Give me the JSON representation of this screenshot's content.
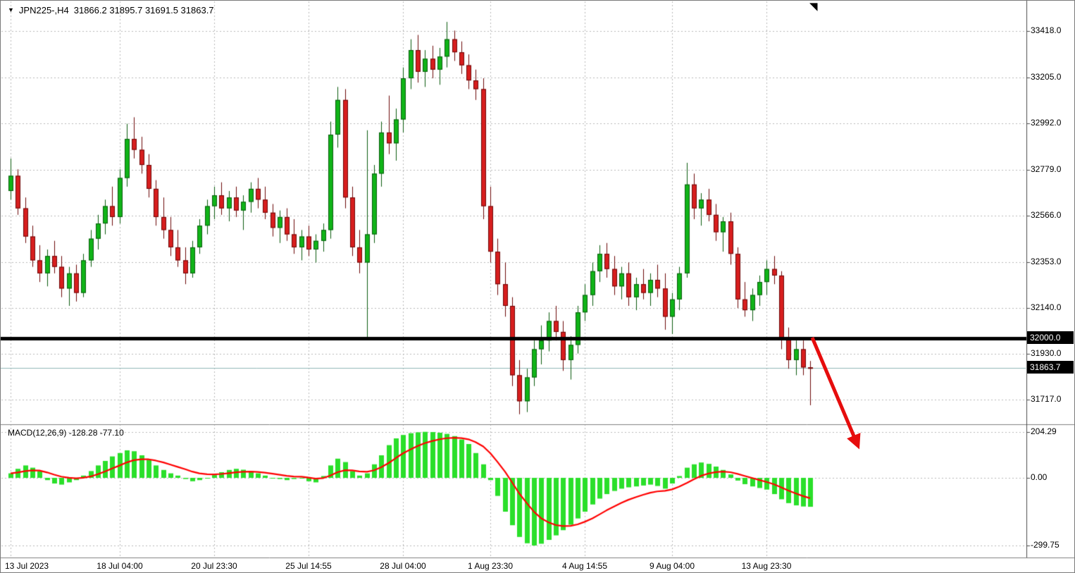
{
  "header": {
    "dropdown_icon": "▼",
    "title": "JPN225-,H4",
    "quote": "31866.2 31895.7 31691.5 31863.7"
  },
  "icons": {
    "end_marker": "◥"
  },
  "indicator_label": "MACD(12,26,9) -128.28 -77.10",
  "annotations": {
    "arrow": {
      "shape": "arrow",
      "color": "#e60d0d",
      "direction": "down-right"
    }
  },
  "chart_data": {
    "type": "candlestick",
    "symbol": "JPN225-",
    "timeframe": "H4",
    "last_quote": {
      "open": 31866.2,
      "high": 31895.7,
      "low": 31691.5,
      "close": 31863.7
    },
    "horizontal_line": {
      "label": "32000.0",
      "value": 32000.0
    },
    "last_price": {
      "label": "31863.7",
      "value": 31863.7
    },
    "price_axis_ticks": [
      {
        "label": "33418.0",
        "value": 33418.0
      },
      {
        "label": "33205.0",
        "value": 33205.0
      },
      {
        "label": "32992.0",
        "value": 32992.0
      },
      {
        "label": "32779.0",
        "value": 32779.0
      },
      {
        "label": "32566.0",
        "value": 32566.0
      },
      {
        "label": "32353.0",
        "value": 32353.0
      },
      {
        "label": "32140.0",
        "value": 32140.0
      },
      {
        "label": "31930.0",
        "value": 31930.0
      },
      {
        "label": "31717.0",
        "value": 31717.0
      }
    ],
    "time_ticks": [
      {
        "label": "13 Jul 2023",
        "index": 0
      },
      {
        "label": "18 Jul 04:00",
        "index": 15
      },
      {
        "label": "20 Jul 23:30",
        "index": 28
      },
      {
        "label": "25 Jul 14:55",
        "index": 41
      },
      {
        "label": "28 Jul 04:00",
        "index": 54
      },
      {
        "label": "1 Aug 23:30",
        "index": 66
      },
      {
        "label": "4 Aug 14:55",
        "index": 79
      },
      {
        "label": "9 Aug 04:00",
        "index": 91
      },
      {
        "label": "13 Aug 23:30",
        "index": 104
      }
    ],
    "ohlc": [
      [
        32680,
        32830,
        32640,
        32750
      ],
      [
        32750,
        32780,
        32570,
        32600
      ],
      [
        32600,
        32650,
        32440,
        32470
      ],
      [
        32470,
        32520,
        32330,
        32360
      ],
      [
        32360,
        32430,
        32260,
        32300
      ],
      [
        32300,
        32410,
        32240,
        32380
      ],
      [
        32380,
        32450,
        32300,
        32330
      ],
      [
        32330,
        32380,
        32190,
        32230
      ],
      [
        32230,
        32330,
        32150,
        32300
      ],
      [
        32300,
        32340,
        32170,
        32210
      ],
      [
        32210,
        32390,
        32190,
        32360
      ],
      [
        32360,
        32500,
        32330,
        32460
      ],
      [
        32460,
        32570,
        32410,
        32530
      ],
      [
        32530,
        32640,
        32480,
        32610
      ],
      [
        32610,
        32700,
        32520,
        32560
      ],
      [
        32560,
        32780,
        32530,
        32740
      ],
      [
        32740,
        32990,
        32700,
        32920
      ],
      [
        32920,
        33020,
        32830,
        32870
      ],
      [
        32870,
        32930,
        32760,
        32800
      ],
      [
        32800,
        32850,
        32650,
        32690
      ],
      [
        32690,
        32730,
        32520,
        32560
      ],
      [
        32560,
        32650,
        32460,
        32500
      ],
      [
        32500,
        32560,
        32380,
        32420
      ],
      [
        32420,
        32500,
        32330,
        32360
      ],
      [
        32360,
        32420,
        32250,
        32300
      ],
      [
        32300,
        32450,
        32280,
        32420
      ],
      [
        32420,
        32550,
        32390,
        32520
      ],
      [
        32520,
        32640,
        32480,
        32610
      ],
      [
        32610,
        32700,
        32550,
        32660
      ],
      [
        32660,
        32720,
        32570,
        32600
      ],
      [
        32600,
        32680,
        32540,
        32650
      ],
      [
        32650,
        32700,
        32560,
        32590
      ],
      [
        32590,
        32660,
        32500,
        32630
      ],
      [
        32630,
        32720,
        32580,
        32690
      ],
      [
        32690,
        32740,
        32600,
        32640
      ],
      [
        32640,
        32700,
        32550,
        32580
      ],
      [
        32580,
        32620,
        32470,
        32510
      ],
      [
        32510,
        32590,
        32440,
        32560
      ],
      [
        32560,
        32600,
        32450,
        32480
      ],
      [
        32480,
        32550,
        32390,
        32420
      ],
      [
        32420,
        32500,
        32360,
        32470
      ],
      [
        32470,
        32520,
        32380,
        32410
      ],
      [
        32410,
        32480,
        32350,
        32450
      ],
      [
        32450,
        32530,
        32400,
        32500
      ],
      [
        32500,
        33000,
        32460,
        32940
      ],
      [
        32940,
        33160,
        32880,
        33100
      ],
      [
        33100,
        33150,
        32600,
        32650
      ],
      [
        32650,
        32700,
        32380,
        32420
      ],
      [
        32420,
        32500,
        32300,
        32350
      ],
      [
        32350,
        32960,
        32005,
        32480
      ],
      [
        32480,
        32800,
        32440,
        32760
      ],
      [
        32760,
        33000,
        32700,
        32950
      ],
      [
        32950,
        33120,
        32850,
        32900
      ],
      [
        32900,
        33060,
        32820,
        33010
      ],
      [
        33010,
        33250,
        32950,
        33200
      ],
      [
        33200,
        33380,
        33150,
        33330
      ],
      [
        33330,
        33400,
        33180,
        33230
      ],
      [
        33230,
        33330,
        33160,
        33290
      ],
      [
        33290,
        33350,
        33200,
        33240
      ],
      [
        33240,
        33340,
        33170,
        33300
      ],
      [
        33300,
        33460,
        33250,
        33380
      ],
      [
        33380,
        33420,
        33280,
        33320
      ],
      [
        33320,
        33370,
        33220,
        33260
      ],
      [
        33260,
        33310,
        33150,
        33190
      ],
      [
        33190,
        33240,
        33100,
        33150
      ],
      [
        33150,
        33200,
        32550,
        32610
      ],
      [
        32610,
        32700,
        32350,
        32400
      ],
      [
        32400,
        32460,
        32200,
        32250
      ],
      [
        32250,
        32350,
        32100,
        32150
      ],
      [
        32150,
        32190,
        31780,
        31830
      ],
      [
        31830,
        31900,
        31650,
        31710
      ],
      [
        31710,
        31860,
        31660,
        31820
      ],
      [
        31820,
        31990,
        31780,
        31950
      ],
      [
        31950,
        32060,
        31880,
        31990
      ],
      [
        31990,
        32120,
        31940,
        32080
      ],
      [
        32080,
        32150,
        31990,
        32030
      ],
      [
        32030,
        32080,
        31850,
        31900
      ],
      [
        31900,
        32010,
        31810,
        31970
      ],
      [
        31970,
        32150,
        31930,
        32120
      ],
      [
        32120,
        32250,
        32080,
        32200
      ],
      [
        32200,
        32350,
        32150,
        32310
      ],
      [
        32310,
        32430,
        32260,
        32390
      ],
      [
        32390,
        32440,
        32280,
        32320
      ],
      [
        32320,
        32380,
        32200,
        32240
      ],
      [
        32240,
        32330,
        32180,
        32300
      ],
      [
        32300,
        32350,
        32150,
        32190
      ],
      [
        32190,
        32280,
        32130,
        32250
      ],
      [
        32250,
        32320,
        32180,
        32210
      ],
      [
        32210,
        32300,
        32150,
        32270
      ],
      [
        32270,
        32340,
        32190,
        32230
      ],
      [
        32230,
        32300,
        32040,
        32100
      ],
      [
        32100,
        32210,
        32020,
        32180
      ],
      [
        32180,
        32330,
        32130,
        32300
      ],
      [
        32300,
        32810,
        32280,
        32710
      ],
      [
        32710,
        32760,
        32550,
        32600
      ],
      [
        32600,
        32670,
        32520,
        32640
      ],
      [
        32640,
        32690,
        32540,
        32570
      ],
      [
        32570,
        32620,
        32450,
        32490
      ],
      [
        32490,
        32560,
        32400,
        32540
      ],
      [
        32540,
        32580,
        32340,
        32390
      ],
      [
        32390,
        32420,
        32140,
        32180
      ],
      [
        32180,
        32260,
        32100,
        32130
      ],
      [
        32130,
        32230,
        32080,
        32200
      ],
      [
        32200,
        32290,
        32150,
        32260
      ],
      [
        32260,
        32360,
        32200,
        32320
      ],
      [
        32320,
        32380,
        32250,
        32290
      ],
      [
        32290,
        32310,
        31950,
        32000
      ],
      [
        32000,
        32050,
        31860,
        31900
      ],
      [
        31900,
        31990,
        31830,
        31950
      ],
      [
        31950,
        31990,
        31830,
        31866
      ],
      [
        31866.2,
        31895.7,
        31691.5,
        31863.7
      ]
    ],
    "macd": {
      "params": [
        12,
        26,
        9
      ],
      "value": -128.28,
      "signal_value": -77.1,
      "axis_ticks": [
        {
          "label": "204.29",
          "value": 204.29
        },
        {
          "label": "0.00",
          "value": 0
        },
        {
          "label": "-299.75",
          "value": -299.75
        }
      ],
      "histogram": [
        20,
        40,
        55,
        45,
        30,
        -10,
        -25,
        -30,
        -20,
        -10,
        10,
        30,
        55,
        75,
        95,
        110,
        122,
        118,
        100,
        80,
        55,
        35,
        20,
        10,
        -5,
        -15,
        -10,
        0,
        12,
        25,
        35,
        40,
        36,
        30,
        20,
        10,
        0,
        -5,
        -10,
        -5,
        0,
        -15,
        -20,
        8,
        55,
        85,
        70,
        30,
        10,
        20,
        60,
        100,
        145,
        175,
        190,
        198,
        202,
        204,
        203,
        200,
        195,
        185,
        170,
        150,
        110,
        60,
        -10,
        -80,
        -150,
        -210,
        -262,
        -290,
        -300,
        -292,
        -275,
        -255,
        -232,
        -208,
        -180,
        -150,
        -118,
        -92,
        -72,
        -58,
        -48,
        -42,
        -38,
        -34,
        -30,
        -36,
        -48,
        -25,
        8,
        45,
        60,
        68,
        62,
        50,
        35,
        15,
        -12,
        -28,
        -38,
        -45,
        -52,
        -72,
        -95,
        -112,
        -122,
        -127,
        -128.28
      ]
    },
    "colors": {
      "bull": "#10b418",
      "bull_border": "#0a5c0e",
      "bear": "#d71e1e",
      "bear_border": "#6d0808",
      "hist": "#2adf2a",
      "hist_border": "#1faf1f",
      "signal": "#ff0000",
      "grid": "#b8b8b8",
      "hline": "#000000",
      "last_price_line": "#8fb6b6"
    },
    "ylim_main": [
      31650,
      33500
    ],
    "ylim_macd": [
      -320,
      230
    ],
    "grid": "dashed"
  }
}
